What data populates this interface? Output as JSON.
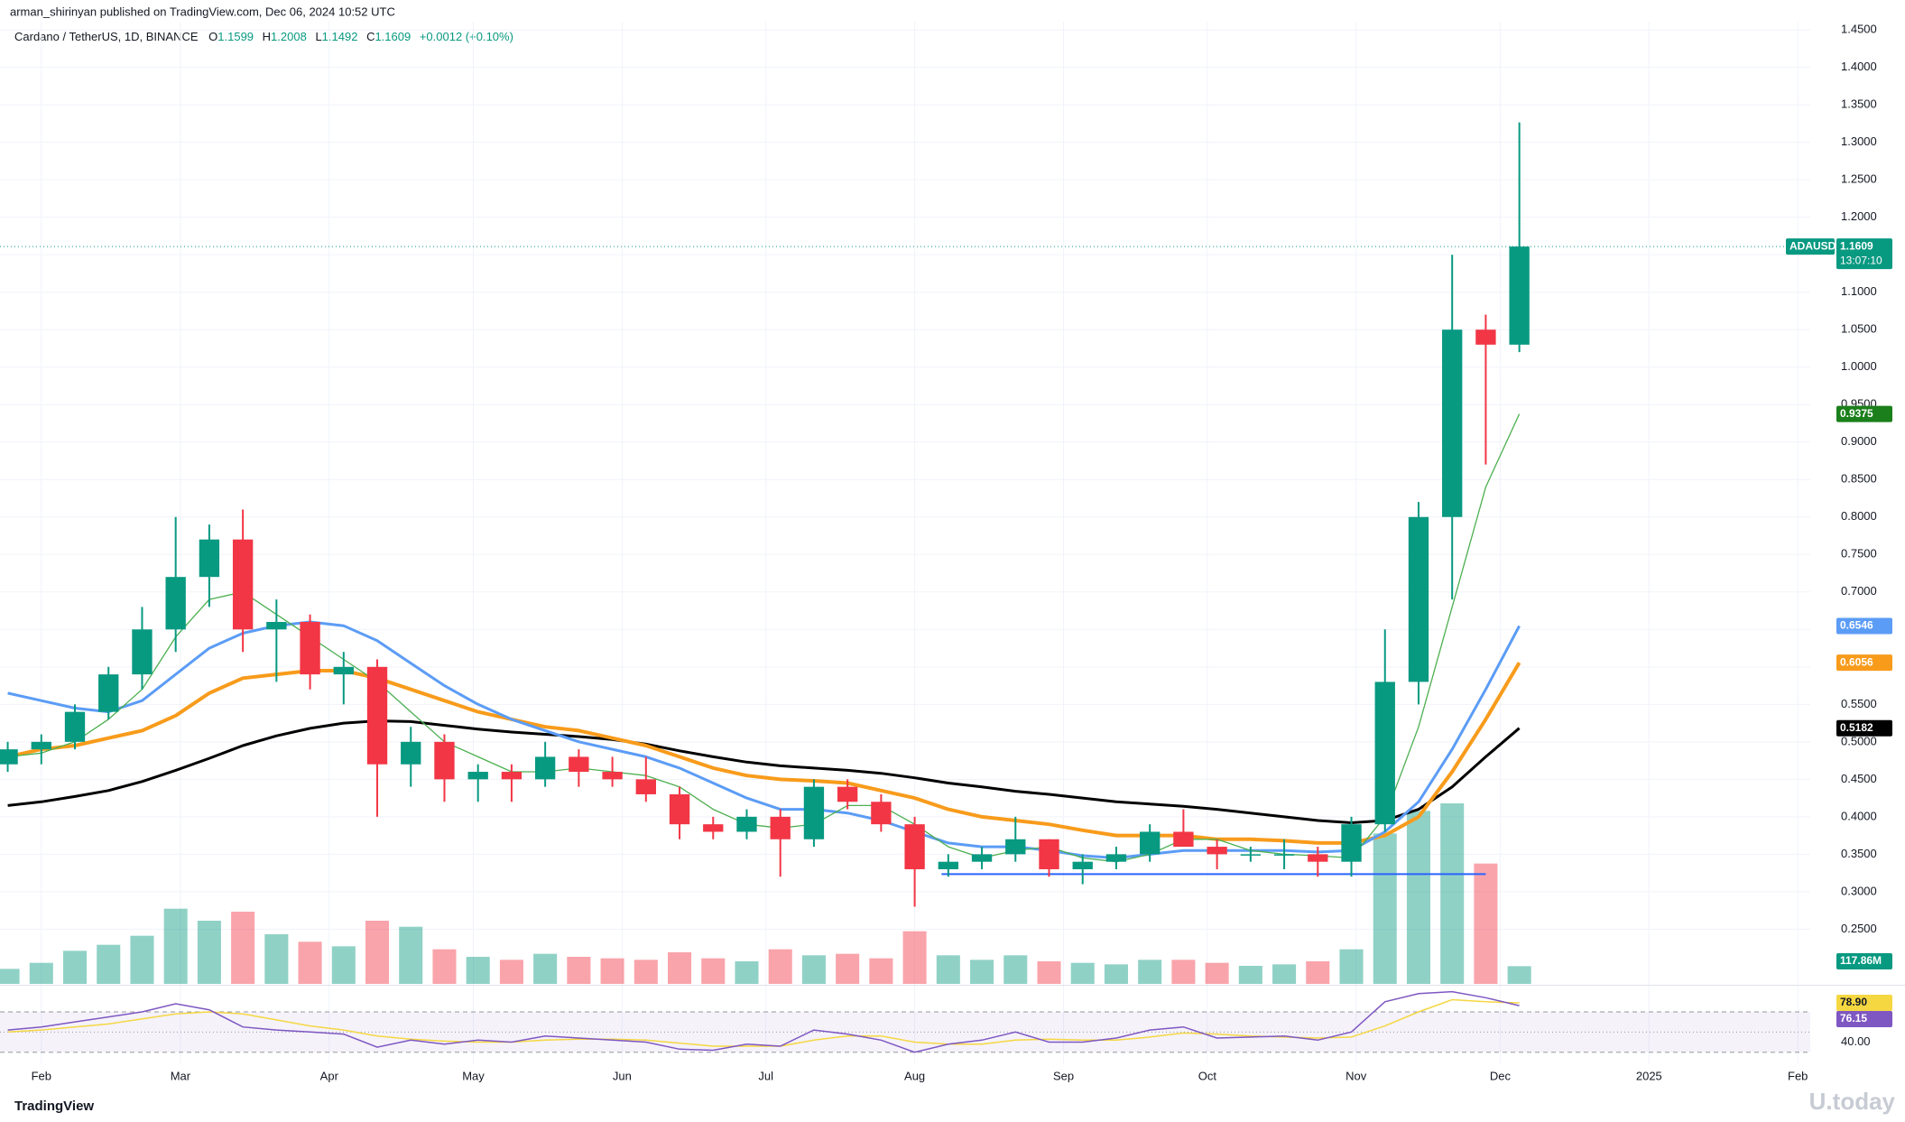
{
  "header": {
    "publisher": "arman_shirinyan published on TradingView.com, Dec 06, 2024 10:52 UTC",
    "symbol": "Cardano / TetherUS, 1D, BINANCE",
    "ohlc": [
      {
        "key": "O",
        "value": "1.1599"
      },
      {
        "key": "H",
        "value": "1.2008"
      },
      {
        "key": "L",
        "value": "1.1492"
      },
      {
        "key": "C",
        "value": "1.1609"
      }
    ],
    "change": "+0.0012 (+0.10%)"
  },
  "footer": {
    "brand": "TradingView",
    "watermark": "U.today"
  },
  "chart_data": {
    "type": "candlestick",
    "categories": [
      null,
      null,
      null,
      null,
      null,
      null,
      null,
      null,
      null,
      null,
      null,
      null,
      null,
      null,
      null,
      null,
      null,
      null,
      null,
      null,
      null,
      null,
      null,
      null,
      null,
      null,
      null,
      null,
      null,
      null,
      null,
      null,
      null,
      null,
      null,
      null,
      null,
      null,
      null,
      null,
      null,
      null,
      null,
      null,
      null,
      null
    ],
    "open": [
      0.47,
      0.49,
      0.5,
      0.54,
      0.59,
      0.65,
      0.72,
      0.77,
      0.65,
      0.66,
      0.59,
      0.6,
      0.47,
      0.5,
      0.45,
      0.46,
      0.45,
      0.48,
      0.46,
      0.45,
      0.43,
      0.39,
      0.38,
      0.4,
      0.37,
      0.44,
      0.42,
      0.39,
      0.33,
      0.34,
      0.35,
      0.37,
      0.33,
      0.34,
      0.35,
      0.38,
      0.36,
      0.35,
      0.35,
      0.35,
      0.34,
      0.39,
      0.58,
      0.8,
      1.05,
      1.03
    ],
    "high": [
      0.5,
      0.51,
      0.55,
      0.6,
      0.68,
      0.8,
      0.79,
      0.81,
      0.69,
      0.67,
      0.62,
      0.61,
      0.52,
      0.51,
      0.47,
      0.47,
      0.5,
      0.49,
      0.48,
      0.48,
      0.44,
      0.4,
      0.41,
      0.41,
      0.45,
      0.45,
      0.43,
      0.4,
      0.35,
      0.36,
      0.4,
      0.37,
      0.35,
      0.36,
      0.39,
      0.41,
      0.37,
      0.36,
      0.37,
      0.36,
      0.4,
      0.65,
      0.82,
      1.15,
      1.07,
      1.3265
    ],
    "low": [
      0.46,
      0.47,
      0.49,
      0.53,
      0.57,
      0.62,
      0.68,
      0.62,
      0.58,
      0.57,
      0.55,
      0.4,
      0.44,
      0.42,
      0.42,
      0.42,
      0.44,
      0.44,
      0.44,
      0.42,
      0.37,
      0.37,
      0.37,
      0.32,
      0.36,
      0.41,
      0.38,
      0.28,
      0.32,
      0.33,
      0.34,
      0.32,
      0.31,
      0.33,
      0.34,
      0.36,
      0.33,
      0.34,
      0.33,
      0.32,
      0.32,
      0.38,
      0.55,
      0.69,
      0.87,
      1.02
    ],
    "close": [
      0.49,
      0.5,
      0.54,
      0.59,
      0.65,
      0.72,
      0.77,
      0.65,
      0.66,
      0.59,
      0.6,
      0.47,
      0.5,
      0.45,
      0.46,
      0.45,
      0.48,
      0.46,
      0.45,
      0.43,
      0.39,
      0.38,
      0.4,
      0.37,
      0.44,
      0.42,
      0.39,
      0.33,
      0.34,
      0.35,
      0.37,
      0.33,
      0.34,
      0.35,
      0.38,
      0.36,
      0.35,
      0.35,
      0.35,
      0.34,
      0.39,
      0.58,
      0.8,
      1.05,
      1.03,
      1.1609
    ],
    "up_color": "#089981",
    "down_color": "#f23645",
    "symbol_tag": "ADAUSDT",
    "countdown": "13:07:10",
    "xlim": [
      -0.23,
      53.66
    ],
    "xticks": [
      {
        "value": 1,
        "label": "Feb"
      },
      {
        "value": 5.14,
        "label": "Mar"
      },
      {
        "value": 9.57,
        "label": "Apr"
      },
      {
        "value": 13.86,
        "label": "May"
      },
      {
        "value": 18.29,
        "label": "Jun"
      },
      {
        "value": 22.57,
        "label": "Jul"
      },
      {
        "value": 27,
        "label": "Aug"
      },
      {
        "value": 31.43,
        "label": "Sep"
      },
      {
        "value": 35.71,
        "label": "Oct"
      },
      {
        "value": 40.14,
        "label": "Nov"
      },
      {
        "value": 44.43,
        "label": "Dec"
      },
      {
        "value": 48.86,
        "label": "2025"
      },
      {
        "value": 53.29,
        "label": "Feb"
      }
    ],
    "ylim": [
      0.177,
      1.461
    ],
    "yticks": [
      {
        "value": 0.25,
        "label": "0.2500"
      },
      {
        "value": 0.3,
        "label": "0.3000"
      },
      {
        "value": 0.35,
        "label": "0.3500"
      },
      {
        "value": 0.4,
        "label": "0.4000"
      },
      {
        "value": 0.45,
        "label": "0.4500"
      },
      {
        "value": 0.5,
        "label": "0.5000"
      },
      {
        "value": 0.55,
        "label": "0.5500"
      },
      {
        "value": 0.6,
        "label": "0.6000"
      },
      {
        "value": 0.65,
        "label": "0.6500"
      },
      {
        "value": 0.7,
        "label": "0.7000"
      },
      {
        "value": 0.75,
        "label": "0.7500"
      },
      {
        "value": 0.8,
        "label": "0.8000"
      },
      {
        "value": 0.85,
        "label": "0.8500"
      },
      {
        "value": 0.9,
        "label": "0.9000"
      },
      {
        "value": 0.95,
        "label": "0.9500"
      },
      {
        "value": 1.0,
        "label": "1.0000"
      },
      {
        "value": 1.05,
        "label": "1.0500"
      },
      {
        "value": 1.1,
        "label": "1.1000"
      },
      {
        "value": 1.15,
        "label": "1.1500"
      },
      {
        "value": 1.2,
        "label": "1.2000"
      },
      {
        "value": 1.25,
        "label": "1.2500"
      },
      {
        "value": 1.3,
        "label": "1.3000"
      },
      {
        "value": 1.35,
        "label": "1.3500"
      },
      {
        "value": 1.4,
        "label": "1.4000"
      },
      {
        "value": 1.45,
        "label": "1.4500"
      }
    ],
    "grid": true,
    "series": [
      {
        "color": "#000000",
        "width": 3,
        "values": [
          0.415,
          0.42,
          0.427,
          0.435,
          0.447,
          0.462,
          0.478,
          0.495,
          0.508,
          0.518,
          0.525,
          0.528,
          0.527,
          0.522,
          0.517,
          0.513,
          0.51,
          0.507,
          0.503,
          0.497,
          0.488,
          0.48,
          0.473,
          0.468,
          0.465,
          0.462,
          0.458,
          0.452,
          0.445,
          0.44,
          0.434,
          0.43,
          0.425,
          0.42,
          0.417,
          0.414,
          0.41,
          0.405,
          0.4,
          0.395,
          0.392,
          0.395,
          0.41,
          0.44,
          0.48,
          0.5182
        ]
      },
      {
        "color": "#f89b1b",
        "width": 4,
        "values": [
          0.48,
          0.49,
          0.495,
          0.505,
          0.515,
          0.535,
          0.565,
          0.585,
          0.59,
          0.595,
          0.595,
          0.585,
          0.57,
          0.555,
          0.54,
          0.53,
          0.52,
          0.515,
          0.505,
          0.495,
          0.48,
          0.465,
          0.455,
          0.45,
          0.448,
          0.445,
          0.435,
          0.425,
          0.41,
          0.4,
          0.395,
          0.39,
          0.382,
          0.375,
          0.375,
          0.375,
          0.37,
          0.37,
          0.368,
          0.365,
          0.365,
          0.375,
          0.4,
          0.46,
          0.53,
          0.6056
        ]
      },
      {
        "color": "#5b9cf6",
        "width": 3,
        "values": [
          0.565,
          0.555,
          0.545,
          0.54,
          0.555,
          0.59,
          0.625,
          0.645,
          0.655,
          0.66,
          0.655,
          0.635,
          0.605,
          0.575,
          0.55,
          0.53,
          0.515,
          0.5,
          0.49,
          0.48,
          0.465,
          0.445,
          0.425,
          0.41,
          0.41,
          0.405,
          0.395,
          0.38,
          0.365,
          0.36,
          0.36,
          0.355,
          0.348,
          0.345,
          0.35,
          0.355,
          0.355,
          0.355,
          0.355,
          0.353,
          0.355,
          0.38,
          0.42,
          0.49,
          0.57,
          0.6546
        ]
      },
      {
        "color": "#4caf50",
        "width": 1.3,
        "label_bg": "#1b7f1b",
        "values": [
          0.48,
          0.485,
          0.5,
          0.53,
          0.57,
          0.64,
          0.69,
          0.7,
          0.67,
          0.64,
          0.61,
          0.58,
          0.54,
          0.5,
          0.48,
          0.46,
          0.46,
          0.465,
          0.46,
          0.455,
          0.44,
          0.41,
          0.39,
          0.385,
          0.39,
          0.415,
          0.415,
          0.39,
          0.36,
          0.345,
          0.355,
          0.36,
          0.345,
          0.34,
          0.35,
          0.37,
          0.37,
          0.355,
          0.35,
          0.348,
          0.345,
          0.4,
          0.52,
          0.68,
          0.84,
          0.9375
        ]
      }
    ],
    "volume": [
      100,
      140,
      220,
      260,
      320,
      500,
      420,
      480,
      330,
      280,
      250,
      420,
      380,
      230,
      180,
      160,
      200,
      180,
      170,
      160,
      210,
      170,
      150,
      230,
      190,
      200,
      170,
      350,
      190,
      160,
      190,
      150,
      140,
      130,
      160,
      160,
      140,
      120,
      130,
      150,
      230,
      1000,
      1150,
      1200,
      800,
      117.86
    ],
    "volume_label": "117.86M",
    "hline": {
      "value": 0.3235,
      "from": 27.8,
      "to": 44.0,
      "color": "#2962ff"
    },
    "rsi": {
      "color": "#7e57c2",
      "values": [
        52,
        55,
        60,
        65,
        70,
        78,
        72,
        55,
        52,
        50,
        48,
        35,
        42,
        38,
        42,
        40,
        46,
        44,
        42,
        40,
        33,
        32,
        38,
        36,
        52,
        48,
        42,
        30,
        38,
        42,
        50,
        40,
        40,
        44,
        52,
        55,
        44,
        45,
        46,
        42,
        50,
        80,
        88,
        90,
        84,
        76.15
      ]
    },
    "rsi_ma": {
      "color": "#f5d742",
      "values": [
        50,
        52,
        55,
        58,
        63,
        68,
        70,
        68,
        62,
        56,
        52,
        46,
        43,
        41,
        40,
        40,
        42,
        43,
        43,
        42,
        39,
        36,
        36,
        36,
        42,
        46,
        46,
        40,
        38,
        38,
        42,
        43,
        42,
        42,
        45,
        49,
        48,
        46,
        45,
        44,
        45,
        56,
        70,
        82,
        80,
        78.9
      ],
      "last_label": "78.90"
    },
    "rsi_ylim": [
      19,
      95
    ],
    "rsi_yticks": [
      {
        "value": 40,
        "label": "40.00"
      }
    ],
    "rsi_levels": [
      30,
      50,
      70
    ]
  }
}
